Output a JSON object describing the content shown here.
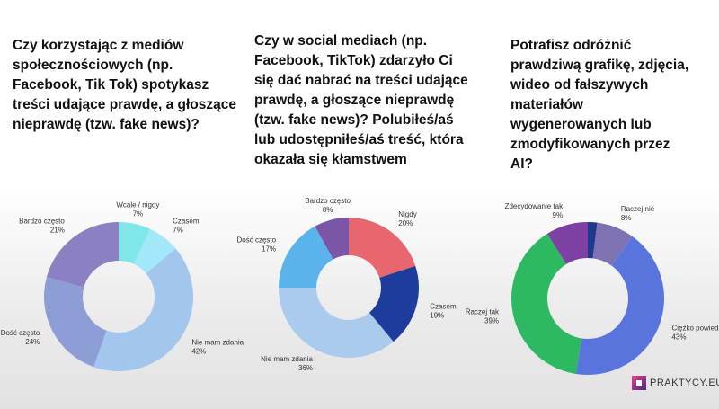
{
  "chart_data": [
    {
      "type": "donut",
      "title": "Czy korzystając z mediów społecznościowych (np. Facebook, Tik Tok) spotykasz treści udające prawdę, a głoszące nieprawdę (tzw. fake news)?",
      "categories": [
        "Wcale / nigdy",
        "Czasem",
        "Nie mam zdania",
        "Dość często",
        "Bardzo często"
      ],
      "values": [
        7,
        7,
        42,
        24,
        21
      ],
      "value_labels": [
        "7%",
        "7%",
        "42%",
        "24%",
        "21%"
      ],
      "colors": [
        "#7fe6ea",
        "#a3e8f8",
        "#a2c6ec",
        "#8d9dd6",
        "#8a80c2"
      ]
    },
    {
      "type": "donut",
      "title": "Czy w social mediach (np. Facebook, TikTok) zdarzyło Ci się dać nabrać na treści udające prawdę, a głoszące nieprawdę (tzw. fake news)? Polubiłeś/aś lub udostępniłeś/aś treść, która okazała się kłamstwem",
      "categories": [
        "Nigdy",
        "Czasem",
        "Nie mam zdania",
        "Dość często",
        "Bardzo często"
      ],
      "values": [
        20,
        19,
        36,
        17,
        8
      ],
      "value_labels": [
        "20%",
        "19%",
        "36%",
        "17%",
        "8%"
      ],
      "colors": [
        "#e8666d",
        "#1e3c9c",
        "#aacbee",
        "#5bb3ec",
        "#7a55a8"
      ]
    },
    {
      "type": "donut",
      "title": "Potrafisz odróżnić prawdziwą grafikę, zdjęcia, wideo od fałszywych materiałów wygenerowanych lub zmodyfikowanych przez AI?",
      "categories": [
        null,
        "Raczej nie",
        "Ciężko powiedzieć",
        "Raczej tak",
        "Zdecydowanie tak"
      ],
      "values": [
        2,
        8,
        43,
        39,
        9
      ],
      "value_labels": [
        null,
        "8%",
        "43%",
        "39%",
        "9%"
      ],
      "colors": [
        "#1d3a8c",
        "#7e72b2",
        "#5a74de",
        "#2db862",
        "#7c41a2"
      ]
    }
  ],
  "logo": "PRAKTYCY.EU"
}
